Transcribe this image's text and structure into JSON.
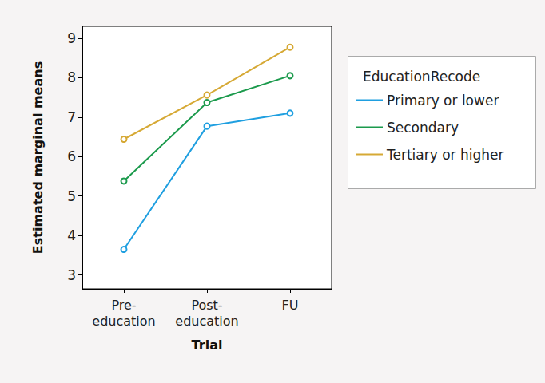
{
  "chart_data": {
    "type": "line",
    "x_label": "Trial",
    "y_label": "Estimated marginal means",
    "legend_title": "EducationRecode",
    "categories": [
      "Pre-\neducation",
      "Post-\neducation",
      "FU"
    ],
    "series": [
      {
        "name": "Primary or lower",
        "color": "#1f9fe0",
        "values": [
          3.65,
          6.77,
          7.1
        ]
      },
      {
        "name": "Secondary",
        "color": "#1b9a4c",
        "values": [
          5.38,
          7.37,
          8.05
        ]
      },
      {
        "name": "Tertiary or higher",
        "color": "#d6a935",
        "values": [
          6.44,
          7.56,
          8.77
        ]
      }
    ],
    "ylim": [
      2.65,
      9.3
    ],
    "yticks": [
      3,
      4,
      5,
      6,
      7,
      8,
      9
    ],
    "grid": false,
    "legend": "right",
    "marker": "circle",
    "line_style": "solid"
  }
}
